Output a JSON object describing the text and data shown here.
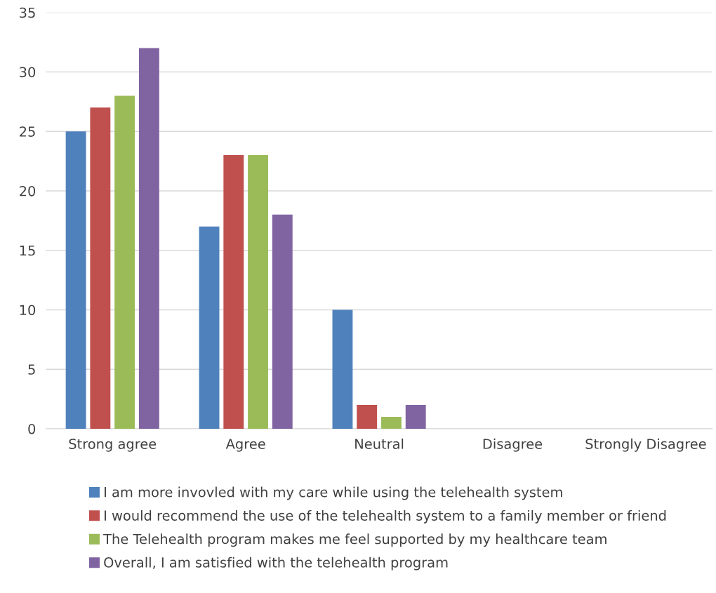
{
  "chart_data": {
    "type": "bar",
    "categories": [
      "Strong agree",
      "Agree",
      "Neutral",
      "Disagree",
      "Strongly Disagree"
    ],
    "series": [
      {
        "name": "I am more invovled with my care while using the telehealth system",
        "color": "#4f81bd",
        "values": [
          25,
          17,
          10,
          0,
          0
        ]
      },
      {
        "name": "I would recommend the use of the telehealth system to a family member or friend",
        "color": "#c0504d",
        "values": [
          27,
          23,
          2,
          0,
          0
        ]
      },
      {
        "name": "The Telehealth program makes me feel supported by my healthcare team",
        "color": "#9bbb59",
        "values": [
          28,
          23,
          1,
          0,
          0
        ]
      },
      {
        "name": "Overall, I am satisfied with the telehealth program",
        "color": "#8064a2",
        "values": [
          32,
          18,
          2,
          0,
          0
        ]
      }
    ],
    "ylim": [
      0,
      35
    ],
    "yticks": [
      0,
      5,
      10,
      15,
      20,
      25,
      30,
      35
    ],
    "grid": "y",
    "legend": "bottom"
  }
}
